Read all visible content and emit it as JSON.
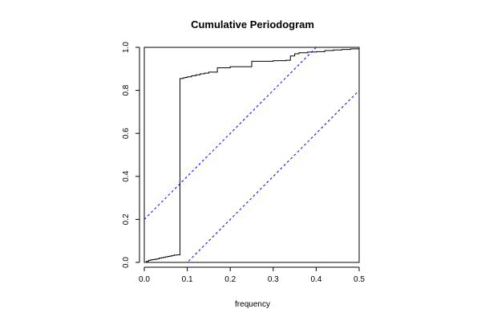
{
  "chart_data": {
    "type": "line",
    "title": "Cumulative Periodogram",
    "xlabel": "frequency",
    "ylabel": "",
    "xlim": [
      0,
      0.5
    ],
    "ylim": [
      0,
      1
    ],
    "x_ticks": [
      "0.0",
      "0.1",
      "0.2",
      "0.3",
      "0.4",
      "0.5"
    ],
    "y_ticks": [
      "0.0",
      "0.2",
      "0.4",
      "0.6",
      "0.8",
      "1.0"
    ],
    "grid": false,
    "legend": "none",
    "series": [
      {
        "style": "step",
        "color": "#000000",
        "x": [
          0,
          0.005,
          0.01,
          0.015,
          0.02,
          0.025,
          0.03,
          0.035,
          0.04,
          0.045,
          0.05,
          0.055,
          0.06,
          0.065,
          0.07,
          0.075,
          0.083,
          0.09,
          0.095,
          0.1,
          0.11,
          0.12,
          0.13,
          0.14,
          0.15,
          0.17,
          0.2,
          0.25,
          0.3,
          0.33,
          0.34,
          0.35,
          0.36,
          0.38,
          0.4,
          0.42,
          0.44,
          0.46,
          0.48,
          0.5
        ],
        "y": [
          0.0,
          0.005,
          0.01,
          0.012,
          0.013,
          0.015,
          0.017,
          0.02,
          0.022,
          0.024,
          0.026,
          0.028,
          0.03,
          0.032,
          0.034,
          0.035,
          0.855,
          0.858,
          0.86,
          0.863,
          0.868,
          0.872,
          0.877,
          0.88,
          0.885,
          0.905,
          0.91,
          0.935,
          0.938,
          0.94,
          0.96,
          0.97,
          0.975,
          0.978,
          0.98,
          0.985,
          0.988,
          0.99,
          0.993,
          1.0
        ]
      },
      {
        "style": "dashed",
        "color": "#0000ff",
        "x": [
          0,
          0.5
        ],
        "y": [
          0.2,
          1.2
        ]
      },
      {
        "style": "dashed",
        "color": "#0000ff",
        "x": [
          0,
          0.5
        ],
        "y": [
          -0.2,
          0.8
        ]
      }
    ]
  }
}
